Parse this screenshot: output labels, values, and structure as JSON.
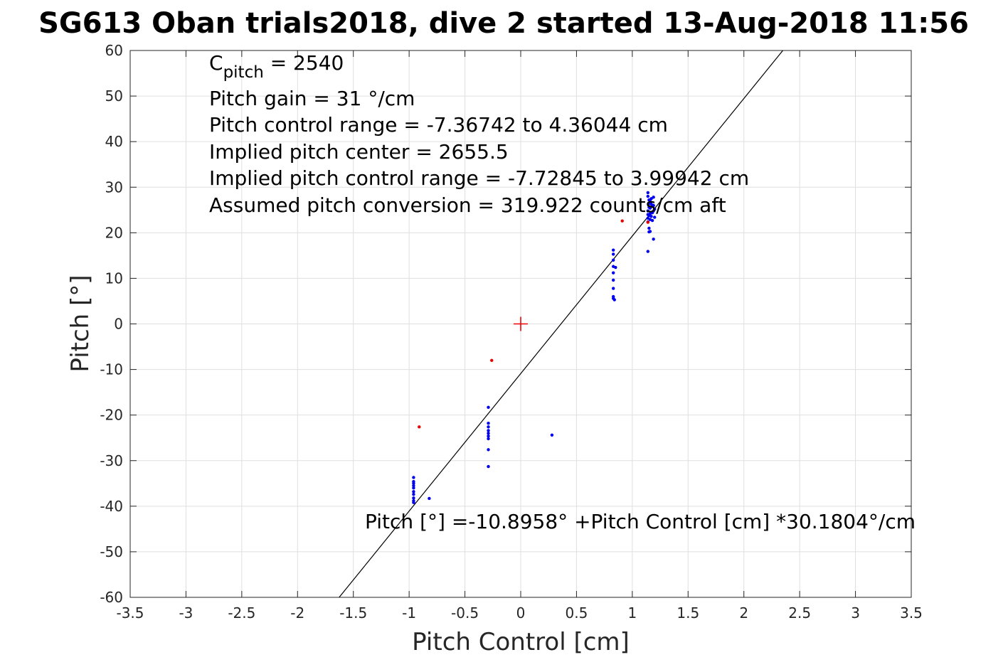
{
  "chart_data": {
    "type": "scatter",
    "title": "SG613 Oban trials2018, dive 2 started 13-Aug-2018 11:56",
    "xlabel": "Pitch Control [cm]",
    "ylabel": "Pitch [°]",
    "xlim": [
      -3.5,
      3.5
    ],
    "ylim": [
      -60,
      60
    ],
    "x_ticks": [
      -3.5,
      -3,
      -2.5,
      -2,
      -1.5,
      -1,
      -0.5,
      0,
      0.5,
      1,
      1.5,
      2,
      2.5,
      3,
      3.5
    ],
    "x_tick_labels": [
      "-3.5",
      "-3",
      "-2.5",
      "-2",
      "-1.5",
      "-1",
      "-0.5",
      "0",
      "0.5",
      "1",
      "1.5",
      "2",
      "2.5",
      "3",
      "3.5"
    ],
    "y_ticks": [
      -60,
      -50,
      -40,
      -30,
      -20,
      -10,
      0,
      10,
      20,
      30,
      40,
      50,
      60
    ],
    "y_tick_labels": [
      "-60",
      "-50",
      "-40",
      "-30",
      "-20",
      "-10",
      "0",
      "10",
      "20",
      "30",
      "40",
      "50",
      "60"
    ],
    "grid": true,
    "colors": {
      "valid": "#0000ee",
      "outlier": "#ee0000",
      "fit": "#000000",
      "axis": "#262626",
      "grid": "#dfdfdf"
    },
    "series": [
      {
        "marker": "dot",
        "color": "#0000ee",
        "points": [
          [
            -0.96,
            -33.7
          ],
          [
            -0.96,
            -34.6
          ],
          [
            -0.96,
            -35.0
          ],
          [
            -0.96,
            -35.5
          ],
          [
            -0.96,
            -36.0
          ],
          [
            -0.96,
            -36.8
          ],
          [
            -0.96,
            -37.4
          ],
          [
            -0.96,
            -38.2
          ],
          [
            -0.96,
            -38.8
          ],
          [
            -0.96,
            -39.2
          ],
          [
            -0.82,
            -38.3
          ],
          [
            -0.29,
            -18.3
          ],
          [
            -0.29,
            -21.8
          ],
          [
            -0.29,
            -22.6
          ],
          [
            -0.29,
            -23.4
          ],
          [
            -0.29,
            -24.0
          ],
          [
            -0.29,
            -24.6
          ],
          [
            -0.29,
            -25.2
          ],
          [
            -0.29,
            -27.6
          ],
          [
            -0.29,
            -31.3
          ],
          [
            0.28,
            -24.4
          ],
          [
            0.83,
            5.6
          ],
          [
            0.83,
            6.0
          ],
          [
            0.83,
            7.8
          ],
          [
            0.83,
            9.6
          ],
          [
            0.83,
            11.2
          ],
          [
            0.83,
            12.6
          ],
          [
            0.83,
            14.0
          ],
          [
            0.83,
            15.3
          ],
          [
            0.83,
            16.2
          ],
          [
            0.84,
            5.3
          ],
          [
            0.85,
            12.4
          ],
          [
            1.14,
            15.9
          ],
          [
            1.15,
            20.2
          ],
          [
            1.15,
            21.0
          ],
          [
            1.14,
            22.4
          ],
          [
            1.14,
            23.2
          ],
          [
            1.14,
            24.0
          ],
          [
            1.14,
            24.8
          ],
          [
            1.15,
            25.6
          ],
          [
            1.15,
            26.4
          ],
          [
            1.15,
            27.2
          ],
          [
            1.14,
            28.0
          ],
          [
            1.14,
            28.8
          ],
          [
            1.16,
            20.3
          ],
          [
            1.16,
            22.9
          ],
          [
            1.16,
            24.2
          ],
          [
            1.16,
            25.4
          ],
          [
            1.17,
            23.6
          ],
          [
            1.17,
            26.3
          ],
          [
            1.17,
            27.5
          ],
          [
            1.18,
            24.4
          ],
          [
            1.18,
            25.8
          ],
          [
            1.18,
            22.7
          ],
          [
            1.19,
            27.8
          ],
          [
            1.19,
            26.0
          ],
          [
            1.19,
            24.8
          ],
          [
            1.19,
            18.6
          ],
          [
            1.2,
            23.4
          ],
          [
            1.2,
            25.2
          ],
          [
            1.16,
            26.9
          ],
          [
            1.15,
            23.8
          ]
        ]
      },
      {
        "marker": "dot",
        "color": "#ee0000",
        "points": [
          [
            -0.91,
            -22.6
          ],
          [
            -0.26,
            -8.0
          ],
          [
            0.91,
            22.6
          ],
          [
            1.14,
            22.3
          ]
        ]
      },
      {
        "marker": "plus",
        "color": "#ee0000",
        "points": [
          [
            0,
            0
          ]
        ]
      },
      {
        "type": "line",
        "color": "#000000",
        "intercept": -10.8958,
        "slope": 30.1804
      }
    ],
    "annotations": {
      "c_pitch_base": "C",
      "c_pitch_sub": "pitch",
      "c_pitch_value": " = 2540",
      "lines": [
        "Pitch gain = 31 °/cm",
        "Pitch control range = -7.36742 to 4.36044 cm",
        "Implied pitch center = 2655.5",
        "Implied pitch control range = -7.72845 to 3.99942 cm",
        "Assumed pitch conversion = 319.922 counts/cm aft"
      ],
      "fit_equation": "Pitch [°] =-10.8958° +Pitch Control [cm] *30.1804°/cm"
    }
  }
}
